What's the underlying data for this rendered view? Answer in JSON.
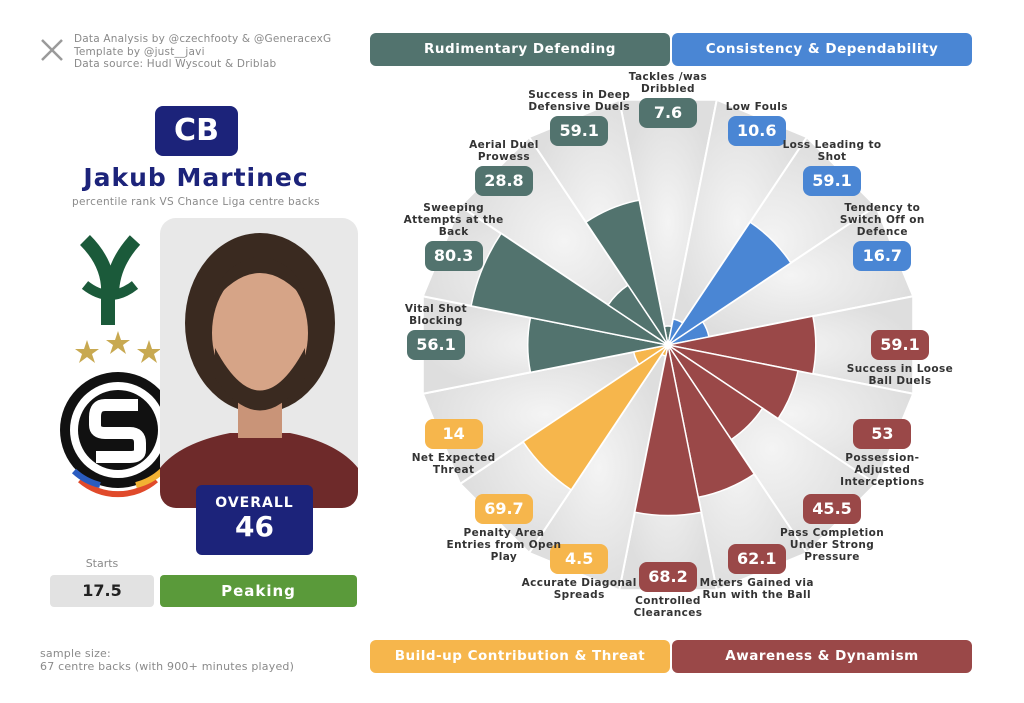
{
  "credits": [
    "Data Analysis by @czechfooty & @GeneracexG",
    "Template by @just__javi",
    "Data source: Hudl Wyscout & Driblab"
  ],
  "player": {
    "position": "CB",
    "name": "Jakub Martinec",
    "subtitle": "percentile rank VS Chance Liga centre backs",
    "overall_label": "OVERALL",
    "overall": 46,
    "starts_label": "Starts",
    "starts": 17.5,
    "form": "Peaking"
  },
  "sample_size": [
    "sample size:",
    "67 centre backs (with 900+ minutes played)"
  ],
  "chart_data": {
    "type": "pizza",
    "rlim": [
      0,
      100
    ],
    "categories": [
      "Tackles /was Dribbled",
      "Low Fouls",
      "Loss Leading to Shot",
      "Tendency to Switch Off on Defence",
      "Success in Loose Ball Duels",
      "Possession-Adjusted Interceptions",
      "Pass Completion Under Strong Pressure",
      "Meters Gained via Run with the Ball",
      "Controlled Clearances",
      "Accurate Diagonal Spreads",
      "Penalty Area Entries from Open Play",
      "Net Expected Threat",
      "Vital Shot Blocking",
      "Sweeping Attempts at the Back",
      "Aerial Duel Prowess",
      "Success in Deep Defensive Duels"
    ],
    "series": [
      {
        "name": "Rudimentary Defending",
        "color": "#52736e",
        "values": [
          7.6,
          null,
          null,
          null,
          null,
          null,
          null,
          null,
          null,
          null,
          null,
          null,
          56.1,
          80.3,
          28.8,
          59.1
        ]
      },
      {
        "name": "Consistency & Dependability",
        "color": "#4a86d4",
        "values": [
          null,
          10.6,
          59.1,
          16.7,
          null,
          null,
          null,
          null,
          null,
          null,
          null,
          null,
          null,
          null,
          null,
          null
        ]
      },
      {
        "name": "Build-up Contribution & Threat",
        "color": "#f6b64c",
        "values": [
          null,
          null,
          null,
          null,
          null,
          null,
          null,
          null,
          null,
          4.5,
          69.7,
          14,
          null,
          null,
          null,
          null
        ]
      },
      {
        "name": "Awareness & Dynamism",
        "color": "#9a4848",
        "values": [
          null,
          null,
          null,
          null,
          59.1,
          53,
          45.5,
          62.1,
          68.2,
          null,
          null,
          null,
          null,
          null,
          null,
          null
        ]
      }
    ]
  }
}
